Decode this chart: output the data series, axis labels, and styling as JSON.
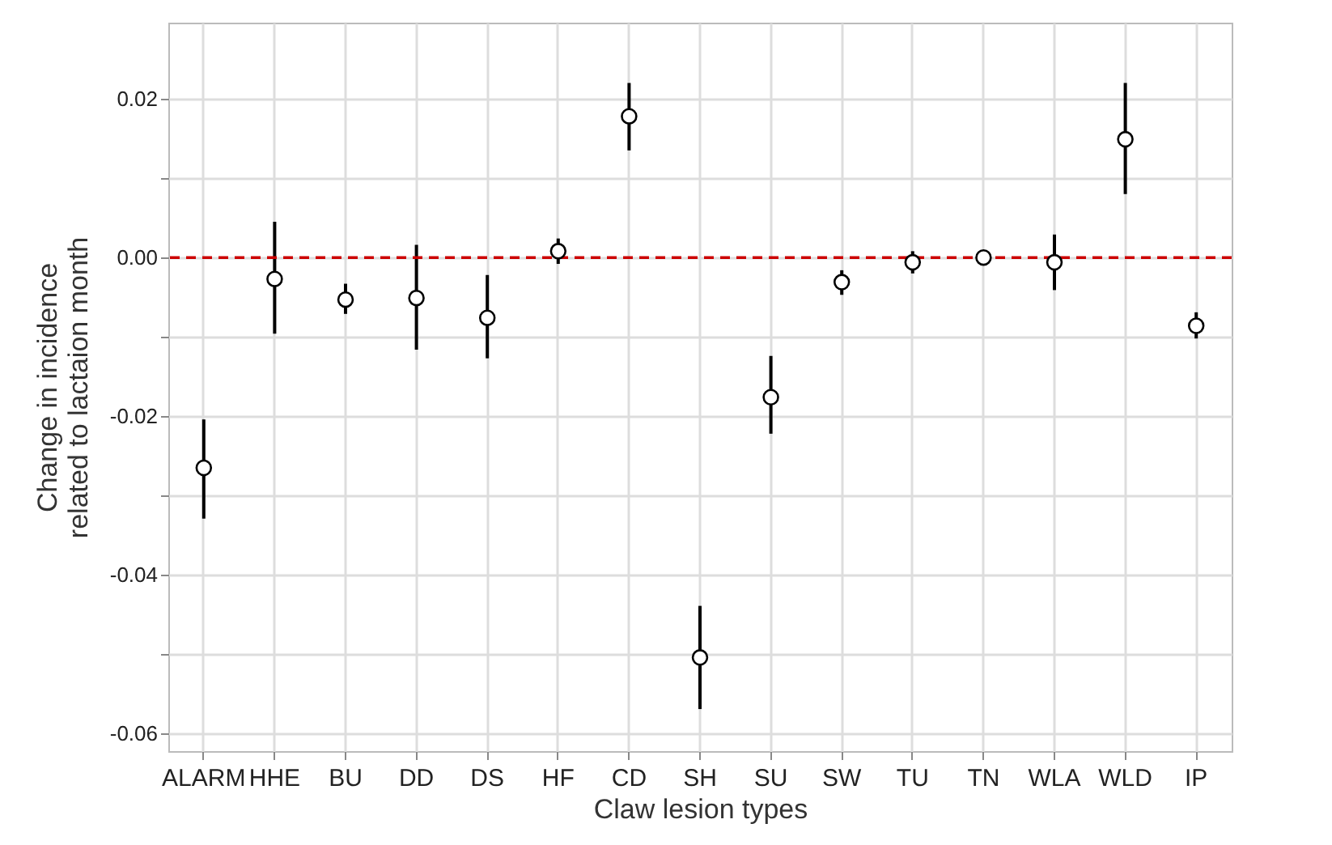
{
  "chart_data": {
    "type": "scatter",
    "xlabel": "Claw lesion types",
    "ylabel": "Change in incidence\nrelated to lactaion month",
    "categories": [
      "ALARM",
      "HHE",
      "BU",
      "DD",
      "DS",
      "HF",
      "CD",
      "SH",
      "SU",
      "SW",
      "TU",
      "TN",
      "WLA",
      "WLD",
      "IP"
    ],
    "series": [
      {
        "color": "#000000",
        "values": [
          -0.0265,
          -0.0027,
          -0.0053,
          -0.0051,
          -0.0076,
          0.0008,
          0.0178,
          -0.0504,
          -0.0176,
          -0.0031,
          -0.0006,
          0.0,
          -0.0006,
          0.0149,
          -0.0086
        ],
        "errors": [
          [
            -0.0329,
            -0.0204
          ],
          [
            -0.0096,
            0.0045
          ],
          [
            -0.0071,
            -0.0033
          ],
          [
            -0.0116,
            0.0016
          ],
          [
            -0.0127,
            -0.0022
          ],
          [
            -0.0008,
            0.0024
          ],
          [
            0.0135,
            0.022
          ],
          [
            -0.0569,
            -0.0439
          ],
          [
            -0.0222,
            -0.0124
          ],
          [
            -0.0047,
            -0.0016
          ],
          [
            -0.002,
            0.0008
          ],
          null,
          [
            -0.0041,
            0.0029
          ],
          [
            0.008,
            0.022
          ],
          [
            -0.0102,
            -0.0069
          ]
        ]
      }
    ],
    "ylim": [
      -0.0622,
      0.0296
    ],
    "yticks": [
      {
        "value": -0.06,
        "label": "-0.06"
      },
      {
        "value": -0.05,
        "label": null
      },
      {
        "value": -0.04,
        "label": "-0.04"
      },
      {
        "value": -0.03,
        "label": null
      },
      {
        "value": -0.02,
        "label": "-0.02"
      },
      {
        "value": -0.01,
        "label": null
      },
      {
        "value": 0,
        "label": "0.00"
      },
      {
        "value": 0.01,
        "label": null
      },
      {
        "value": 0.02,
        "label": "0.02"
      }
    ],
    "ref_lines": [
      {
        "axis": "y",
        "value": 0,
        "color": "#cc0000",
        "line_style": "dashed"
      }
    ],
    "grid": true,
    "marker": "circle"
  }
}
